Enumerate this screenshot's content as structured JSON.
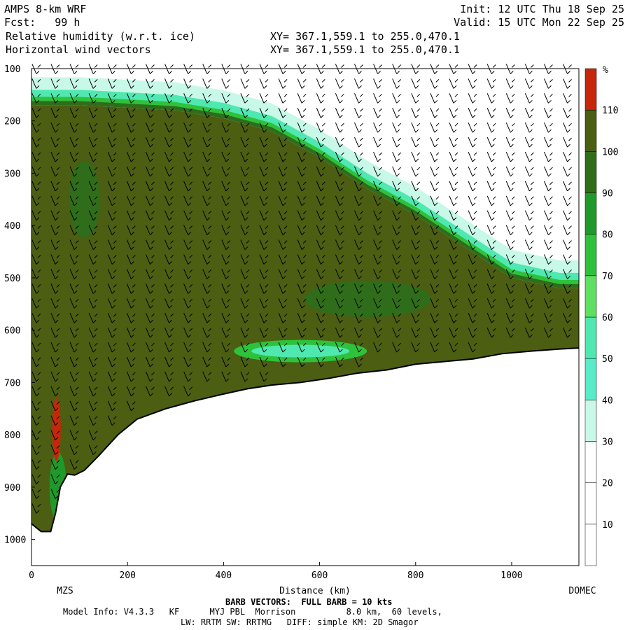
{
  "header": {
    "model": "AMPS 8-km WRF",
    "fcst": "Fcst:   99 h",
    "init": "Init: 12 UTC Thu 18 Sep 25",
    "valid": "Valid: 15 UTC Mon 22 Sep 25",
    "field1": "Relative humidity (w.r.t. ice)",
    "field2": "Horizontal wind vectors",
    "xy1": "XY= 367.1,559.1 to 255.0,470.1",
    "xy2": "XY= 367.1,559.1 to 255.0,470.1"
  },
  "footer": {
    "start_label": "MZS",
    "end_label": "DOMEC",
    "barb_note": "BARB VECTORS:  FULL BARB = 10 kts",
    "model_info": "Model Info: V4.3.3   KF      MYJ PBL  Morrison          8.0 km,  60 levels,",
    "model_info2": "LW: RRTM SW: RRTMG   DIFF: simple KM: 2D Smagor"
  },
  "colors": {
    "terrain": "#ffffff",
    "rh_gt_100": "#4b5e12",
    "rh_90_100": "#2f6d1a",
    "rh_80_90": "#1f9a2a",
    "rh_70_80": "#2ec23c",
    "rh_60_70": "#5fe063",
    "rh_50_60": "#4fe8b0",
    "rh_40_50": "#59ecc8",
    "rh_30_40": "#c8f8e8",
    "rh_lt_30": "#ffffff",
    "rh_gt_110": "#c8260a"
  },
  "chart_data": {
    "type": "heatmap",
    "title": "Relative humidity (w.r.t. ice)",
    "xlabel": "Distance (km)",
    "ylabel": "",
    "xlim": [
      0,
      1140
    ],
    "ylim": [
      1050,
      100
    ],
    "xticks": [
      0,
      200,
      400,
      600,
      800,
      1000
    ],
    "yticks": [
      100,
      200,
      300,
      400,
      500,
      600,
      700,
      800,
      900,
      1000
    ],
    "colorbar": {
      "unit": "%",
      "levels": [
        10,
        20,
        30,
        40,
        50,
        60,
        70,
        80,
        90,
        100,
        110
      ]
    },
    "terrain_surface": {
      "x": [
        0,
        20,
        40,
        50,
        60,
        75,
        90,
        110,
        140,
        180,
        220,
        280,
        340,
        400,
        450,
        500,
        560,
        620,
        680,
        740,
        800,
        860,
        920,
        980,
        1040,
        1100,
        1140
      ],
      "y": [
        970,
        985,
        985,
        950,
        900,
        875,
        877,
        868,
        840,
        800,
        770,
        750,
        735,
        722,
        712,
        705,
        700,
        692,
        682,
        676,
        665,
        660,
        655,
        645,
        640,
        636,
        634
      ]
    },
    "dry_layer_top": {
      "x": [
        0,
        100,
        200,
        300,
        400,
        500,
        600,
        700,
        800,
        900,
        1000,
        1100,
        1140
      ],
      "y": [
        170,
        170,
        175,
        180,
        195,
        220,
        270,
        330,
        380,
        440,
        500,
        520,
        520
      ]
    }
  }
}
